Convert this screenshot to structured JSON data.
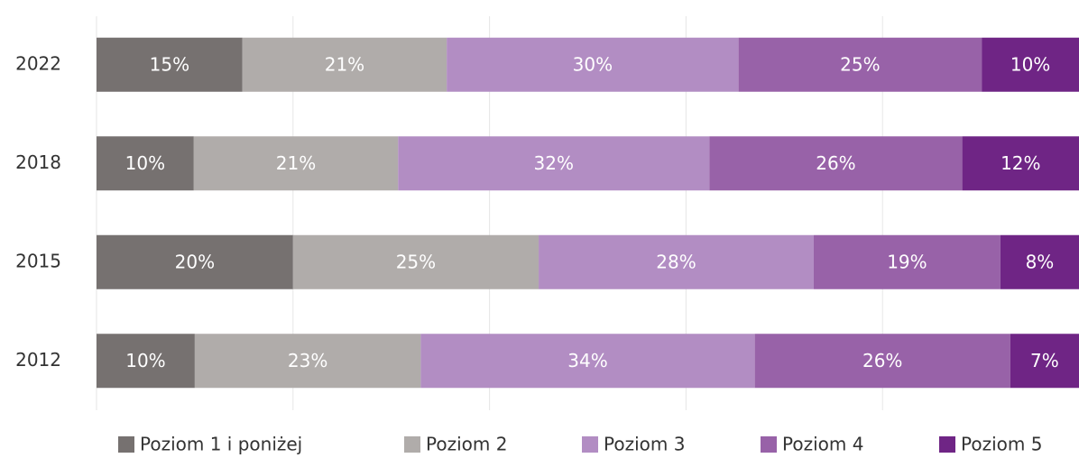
{
  "chart_data": {
    "type": "stacked_bar_100",
    "orientation": "horizontal",
    "categories": [
      "2022",
      "2018",
      "2015",
      "2012"
    ],
    "series": [
      {
        "name": "Poziom 1 i poniżej",
        "color": "#767170",
        "values": [
          15,
          10,
          20,
          10
        ],
        "value_labels": [
          "15%",
          "10%",
          "20%",
          "10%"
        ]
      },
      {
        "name": "Poziom 2",
        "color": "#b0acaa",
        "values": [
          21,
          21,
          25,
          23
        ],
        "value_labels": [
          "21%",
          "21%",
          "25%",
          "23%"
        ]
      },
      {
        "name": "Poziom 3",
        "color": "#b28dc3",
        "values": [
          30,
          32,
          28,
          34
        ],
        "value_labels": [
          "30%",
          "32%",
          "28%",
          "34%"
        ]
      },
      {
        "name": "Poziom 4",
        "color": "#9862a8",
        "values": [
          25,
          26,
          19,
          26
        ],
        "value_labels": [
          "25%",
          "26%",
          "19%",
          "26%"
        ]
      },
      {
        "name": "Poziom 5",
        "color": "#6f2585",
        "values": [
          10,
          12,
          8,
          7
        ],
        "value_labels": [
          "10%",
          "12%",
          "8%",
          "7%"
        ]
      }
    ],
    "xlim": [
      0,
      100
    ],
    "xticks": [
      0,
      20,
      40,
      60,
      80
    ],
    "grid": true,
    "legend": "bottom"
  }
}
